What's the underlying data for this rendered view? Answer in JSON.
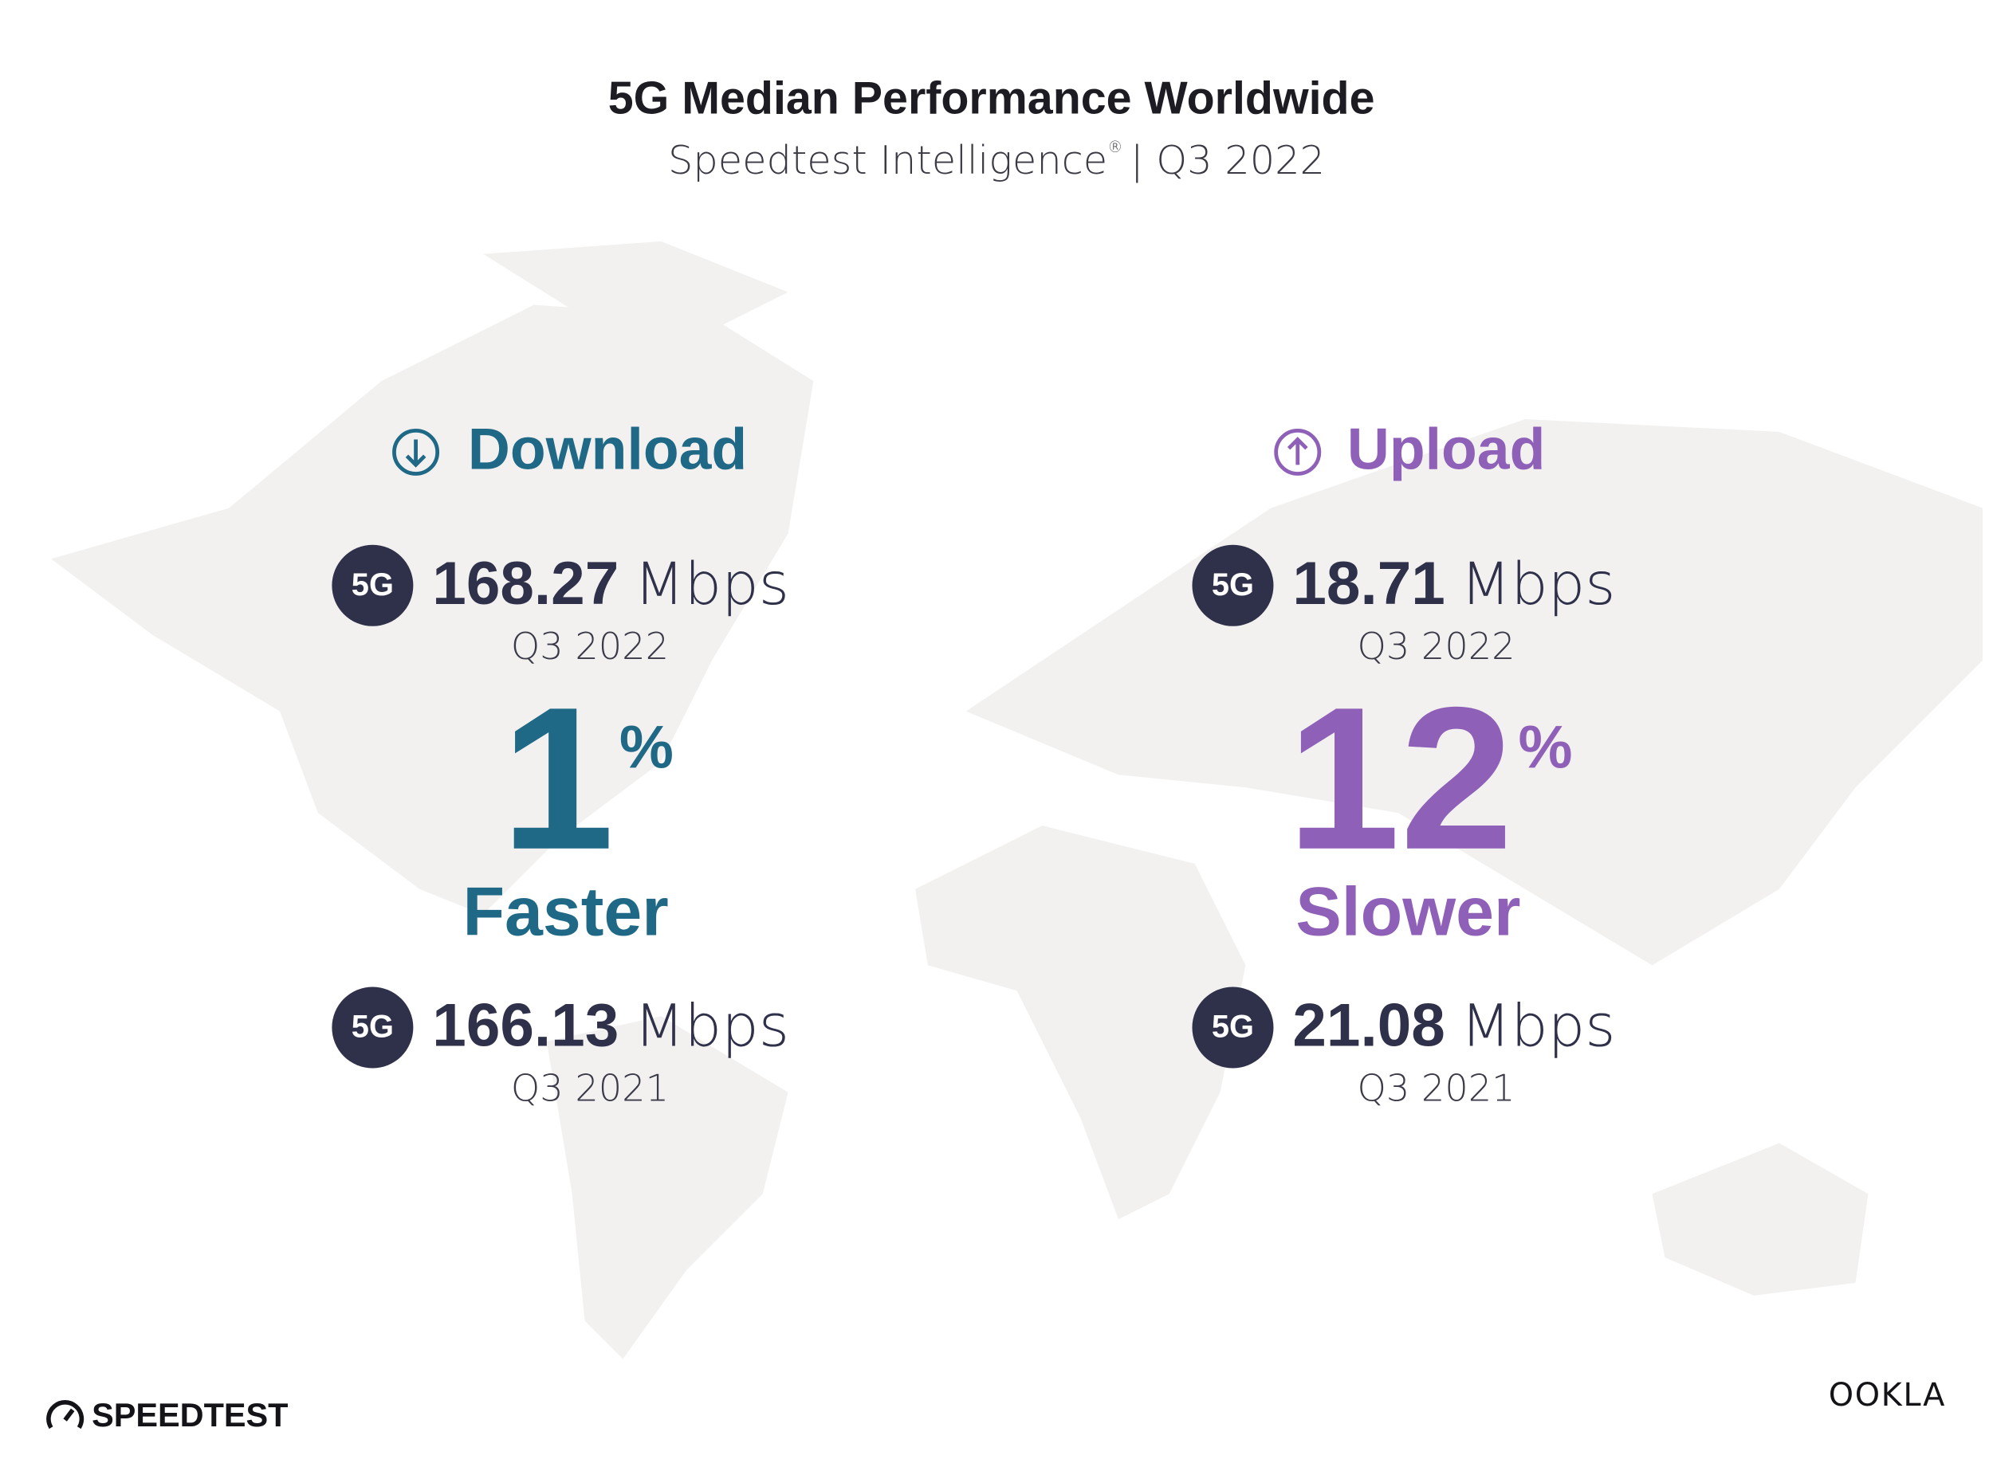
{
  "header": {
    "title": "5G Median Performance Worldwide",
    "subtitle": "Speedtest Intelligence",
    "trademark": "®",
    "period": "| Q3 2022"
  },
  "panels": [
    {
      "heading": "Download",
      "color": "#1f6987",
      "current": {
        "badge": "5G",
        "value": "168.27",
        "unit": "Mbps",
        "period": "Q3 2022"
      },
      "change": {
        "value": "1",
        "unit": "%",
        "label": "Faster"
      },
      "previous": {
        "badge": "5G",
        "value": "166.13",
        "unit": "Mbps",
        "period": "Q3 2021"
      }
    },
    {
      "heading": "Upload",
      "color": "#8f60b8",
      "current": {
        "badge": "5G",
        "value": "18.71",
        "unit": "Mbps",
        "period": "Q3 2022"
      },
      "change": {
        "value": "12",
        "unit": "%",
        "label": "Slower"
      },
      "previous": {
        "badge": "5G",
        "value": "21.08",
        "unit": "Mbps",
        "period": "Q3 2021"
      }
    }
  ],
  "footer": {
    "left": "SPEEDTEST",
    "right": "OOKLA"
  }
}
